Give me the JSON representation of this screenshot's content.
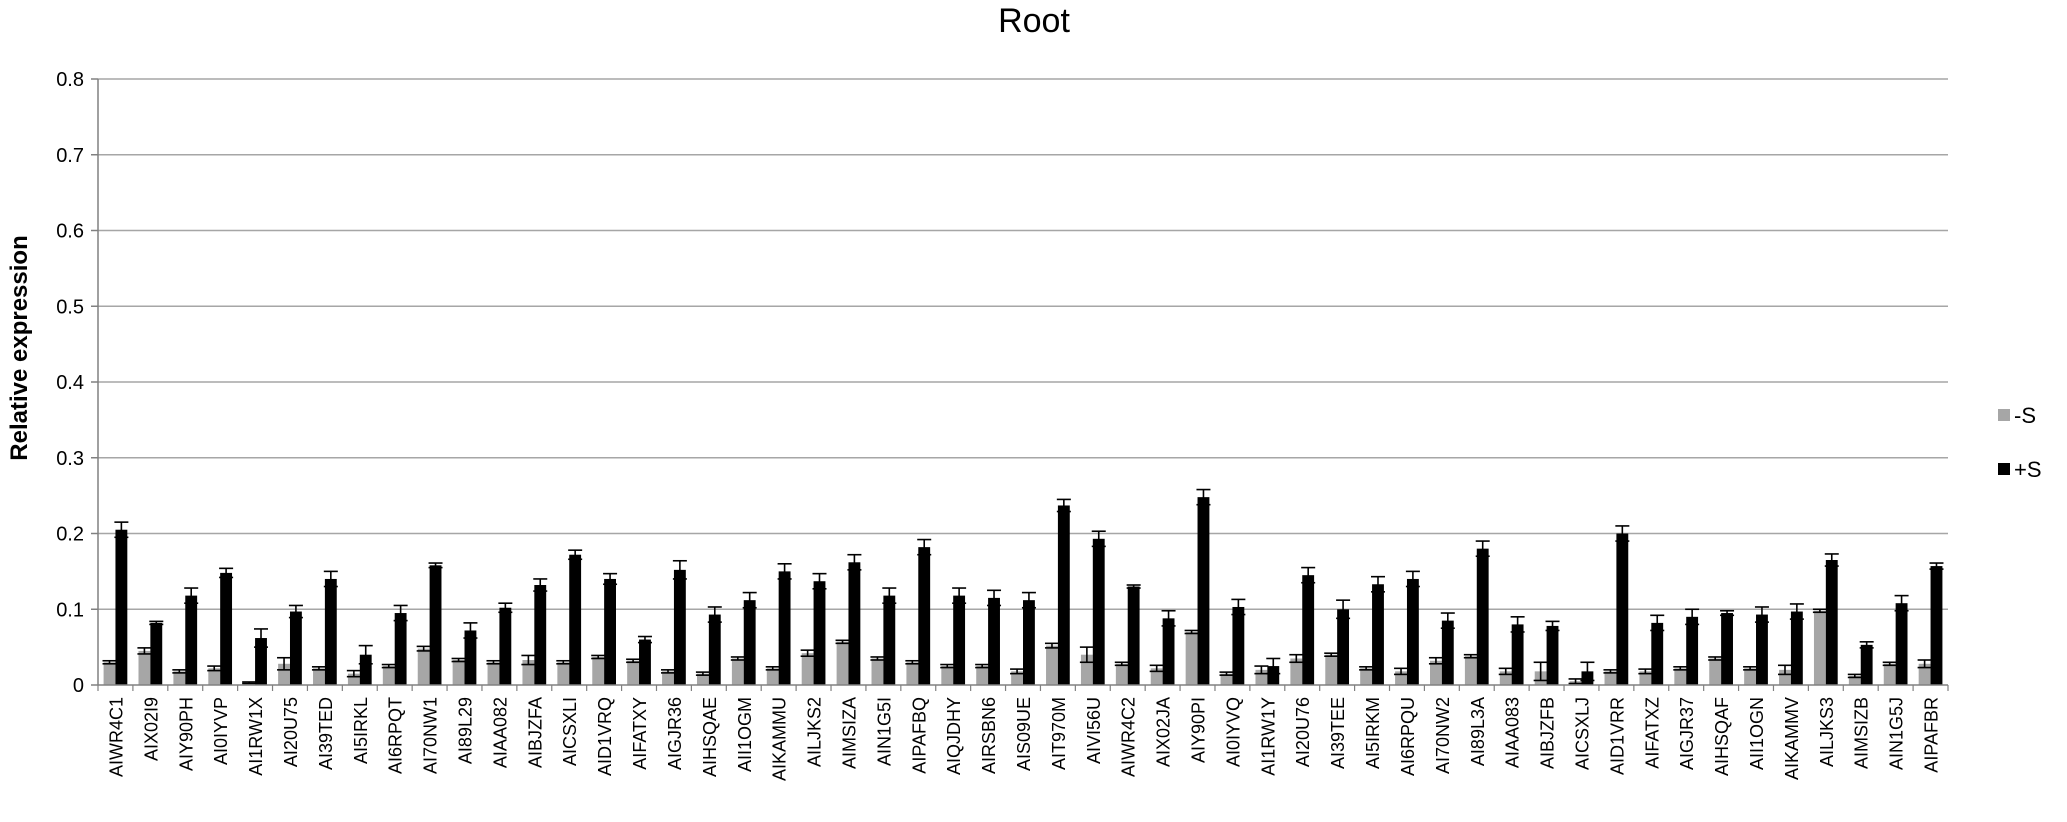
{
  "chart_data": {
    "type": "bar",
    "title": "Root",
    "xlabel": "",
    "ylabel": "Relative expression",
    "ylim": [
      0,
      0.8
    ],
    "yticks": [
      "0",
      "0.1",
      "0.2",
      "0.3",
      "0.4",
      "0.5",
      "0.6",
      "0.7",
      "0.8"
    ],
    "grid": true,
    "legend_position": "right",
    "categories": [
      "AIWR4C1",
      "AIX02I9",
      "AIY90PH",
      "AI0IYVP",
      "AI1RW1X",
      "AI20U75",
      "AI39TED",
      "AI5IRKL",
      "AI6RPQT",
      "AI70NW1",
      "AI89L29",
      "AIAA082",
      "AIBJZFA",
      "AICSXLI",
      "AID1VRQ",
      "AIFATXY",
      "AIGJR36",
      "AIHSQAE",
      "AII1OGM",
      "AIKAMMU",
      "AILJKS2",
      "AIMSIZA",
      "AIN1G5I",
      "AIPAFBQ",
      "AIQJDHY",
      "AIRSBN6",
      "AIS09UE",
      "AIT970M",
      "AIVI56U",
      "AIWR4C2",
      "AIX02JA",
      "AIY90PI",
      "AI0IYVQ",
      "AI1RW1Y",
      "AI20U76",
      "AI39TEE",
      "AI5IRKM",
      "AI6RPQU",
      "AI70NW2",
      "AI89L3A",
      "AIAA083",
      "AIBJZFB",
      "AICSXLJ",
      "AID1VRR",
      "AIFATXZ",
      "AIGJR37",
      "AIHSQAF",
      "AII1OGN",
      "AIKAMMV",
      "AILJKS3",
      "AIMSIZB",
      "AIN1G5J",
      "AIPAFBR"
    ],
    "series": [
      {
        "name": "-S",
        "color": "#a6a6a6",
        "values": [
          0.03,
          0.045,
          0.018,
          0.022,
          0.003,
          0.028,
          0.022,
          0.015,
          0.025,
          0.048,
          0.033,
          0.03,
          0.033,
          0.03,
          0.037,
          0.032,
          0.018,
          0.015,
          0.035,
          0.022,
          0.042,
          0.057,
          0.035,
          0.03,
          0.025,
          0.025,
          0.018,
          0.052,
          0.04,
          0.028,
          0.022,
          0.07,
          0.015,
          0.02,
          0.035,
          0.04,
          0.022,
          0.018,
          0.032,
          0.038,
          0.018,
          0.018,
          0.005,
          0.018,
          0.018,
          0.022,
          0.035,
          0.022,
          0.02,
          0.098,
          0.012,
          0.028,
          0.028
        ],
        "errors": [
          0.002,
          0.004,
          0.002,
          0.003,
          0.001,
          0.008,
          0.002,
          0.004,
          0.002,
          0.003,
          0.002,
          0.002,
          0.006,
          0.002,
          0.002,
          0.002,
          0.002,
          0.002,
          0.002,
          0.002,
          0.004,
          0.002,
          0.002,
          0.002,
          0.002,
          0.002,
          0.003,
          0.003,
          0.01,
          0.002,
          0.004,
          0.002,
          0.002,
          0.005,
          0.005,
          0.002,
          0.002,
          0.004,
          0.004,
          0.002,
          0.004,
          0.012,
          0.003,
          0.002,
          0.003,
          0.002,
          0.002,
          0.002,
          0.006,
          0.002,
          0.002,
          0.002,
          0.005
        ]
      },
      {
        "name": "+S",
        "color": "#000000",
        "values": [
          0.205,
          0.082,
          0.118,
          0.148,
          0.062,
          0.097,
          0.14,
          0.04,
          0.095,
          0.158,
          0.072,
          0.102,
          0.132,
          0.172,
          0.14,
          0.06,
          0.152,
          0.093,
          0.112,
          0.15,
          0.137,
          0.162,
          0.118,
          0.182,
          0.118,
          0.115,
          0.112,
          0.237,
          0.193,
          0.13,
          0.088,
          0.248,
          0.103,
          0.025,
          0.145,
          0.1,
          0.133,
          0.14,
          0.085,
          0.18,
          0.08,
          0.078,
          0.018,
          0.2,
          0.082,
          0.09,
          0.095,
          0.093,
          0.097,
          0.165,
          0.053,
          0.108,
          0.157
        ],
        "errors": [
          0.01,
          0.002,
          0.01,
          0.006,
          0.012,
          0.008,
          0.01,
          0.012,
          0.01,
          0.003,
          0.01,
          0.006,
          0.008,
          0.006,
          0.007,
          0.004,
          0.012,
          0.01,
          0.01,
          0.01,
          0.01,
          0.01,
          0.01,
          0.01,
          0.01,
          0.01,
          0.01,
          0.008,
          0.01,
          0.002,
          0.01,
          0.01,
          0.01,
          0.01,
          0.01,
          0.012,
          0.01,
          0.01,
          0.01,
          0.01,
          0.01,
          0.006,
          0.012,
          0.01,
          0.01,
          0.01,
          0.003,
          0.01,
          0.01,
          0.008,
          0.004,
          0.01,
          0.004
        ]
      }
    ],
    "grid_color": "#a6a6a6",
    "axis_color": "#808080"
  }
}
